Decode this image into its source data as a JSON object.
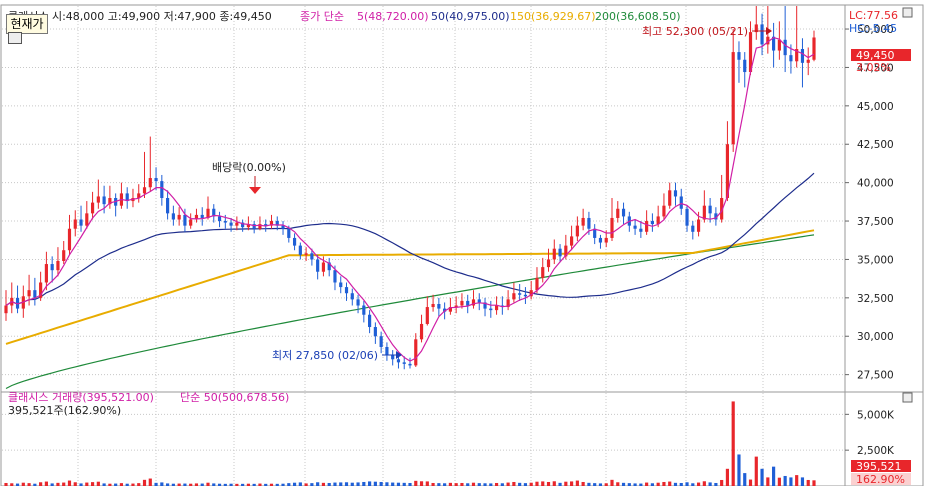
{
  "price_panel": {
    "header": {
      "stock_ohlc": "클래시스 시:48,000 고:49,900 저:47,900 종:49,450",
      "ma_label": "종가 단순",
      "ma5": "5(48,720.00)",
      "ma50": "50(40,975.00)",
      "ma150": "150(36,929.67)",
      "ma200": "200(36,608.50)"
    },
    "corner": {
      "lc": "LC:77.56",
      "hc": "HC:-5.45"
    },
    "current_button": "현재가",
    "last_price_tag": "49,450",
    "change_tag": "3.02%",
    "annotations": {
      "high": "최고 52,300 (05/21)",
      "low": "최저 27,850 (02/06)",
      "dividend": "배당락(0.00%)"
    },
    "y_ticks": [
      "50,000",
      "47,500",
      "45,000",
      "42,500",
      "40,000",
      "37,500",
      "35,000",
      "32,500",
      "30,000",
      "27,500"
    ]
  },
  "volume_panel": {
    "header": {
      "name": "클래시스 거래량(395,521.00)",
      "ma": "단순 50(500,678.56)"
    },
    "sub_label": "395,521주(162.90%)",
    "y_ticks": [
      "5,000K",
      "2,500K"
    ],
    "last_volume_tag": "395,521",
    "last_ratio_tag": "162.90%"
  },
  "colors": {
    "up": "#e8262b",
    "down": "#1f5fd6",
    "ma5": "#d01fa6",
    "ma50": "#1e2d8c",
    "ma150": "#e8ac00",
    "ma200": "#1f8a3a",
    "tag_red": "#e8262b"
  },
  "chart_data": {
    "type": "candlestick",
    "price_axis": {
      "ylim": [
        26500,
        51500
      ]
    },
    "volume_axis": {
      "ylim": [
        0,
        6000
      ]
    },
    "candles": [
      [
        31500,
        32000,
        33000,
        31000
      ],
      [
        32000,
        32500,
        33500,
        31500
      ],
      [
        32500,
        31800,
        33300,
        31500
      ],
      [
        31800,
        32600,
        33300,
        31200
      ],
      [
        32600,
        33000,
        34000,
        32000
      ],
      [
        33000,
        32500,
        33800,
        32000
      ],
      [
        32500,
        33500,
        34200,
        32300
      ],
      [
        33500,
        34700,
        35500,
        33000
      ],
      [
        34700,
        34300,
        35200,
        33500
      ],
      [
        34300,
        34900,
        35800,
        33900
      ],
      [
        34900,
        35600,
        36200,
        34700
      ],
      [
        35600,
        37000,
        37900,
        35300
      ],
      [
        37000,
        37600,
        38200,
        36500
      ],
      [
        37600,
        37200,
        38500,
        36800
      ],
      [
        37200,
        38000,
        38800,
        37000
      ],
      [
        38000,
        38700,
        39400,
        37600
      ],
      [
        38700,
        39100,
        40200,
        38300
      ],
      [
        39100,
        38600,
        39800,
        38000
      ],
      [
        38600,
        39000,
        39800,
        38300
      ],
      [
        39000,
        38500,
        39300,
        37800
      ],
      [
        38500,
        39300,
        40000,
        38300
      ],
      [
        39300,
        38800,
        39700,
        38300
      ],
      [
        38800,
        39000,
        39600,
        38400
      ],
      [
        39000,
        39300,
        39900,
        38700
      ],
      [
        39300,
        39700,
        42000,
        39000
      ],
      [
        39700,
        40300,
        43000,
        39400
      ],
      [
        40300,
        40100,
        41000,
        39500
      ],
      [
        40100,
        39000,
        40500,
        38500
      ],
      [
        39000,
        38000,
        39500,
        37600
      ],
      [
        38000,
        37600,
        38500,
        37200
      ],
      [
        37600,
        37900,
        38400,
        37200
      ],
      [
        37900,
        37200,
        38300,
        36800
      ],
      [
        37200,
        37600,
        38000,
        37000
      ],
      [
        37600,
        37900,
        38300,
        37400
      ],
      [
        37900,
        37700,
        38400,
        37200
      ],
      [
        37700,
        38300,
        39100,
        37600
      ],
      [
        38300,
        37800,
        38600,
        37400
      ],
      [
        37800,
        37500,
        38100,
        37100
      ],
      [
        37500,
        37400,
        37900,
        37000
      ],
      [
        37400,
        37200,
        37700,
        36800
      ],
      [
        37200,
        37400,
        37800,
        36900
      ],
      [
        37400,
        37100,
        37600,
        36800
      ],
      [
        37100,
        37300,
        37800,
        36900
      ],
      [
        37300,
        37000,
        37500,
        36700
      ],
      [
        37000,
        37300,
        37800,
        36900
      ],
      [
        37300,
        37200,
        37600,
        36800
      ],
      [
        37200,
        37500,
        37900,
        37000
      ],
      [
        37500,
        37200,
        37800,
        36900
      ],
      [
        37200,
        37000,
        37500,
        36600
      ],
      [
        37000,
        36400,
        37200,
        36100
      ],
      [
        36400,
        35900,
        36700,
        35600
      ],
      [
        35900,
        35300,
        36100,
        35000
      ],
      [
        35300,
        35400,
        35800,
        34900
      ],
      [
        35400,
        35000,
        35700,
        34600
      ],
      [
        35000,
        34200,
        35300,
        33700
      ],
      [
        34200,
        34800,
        35200,
        33900
      ],
      [
        34800,
        34300,
        35100,
        33900
      ],
      [
        34300,
        33500,
        34600,
        33000
      ],
      [
        33500,
        33200,
        33900,
        32800
      ],
      [
        33200,
        32800,
        33500,
        32300
      ],
      [
        32800,
        32400,
        33100,
        32000
      ],
      [
        32400,
        32000,
        32700,
        31500
      ],
      [
        32000,
        31400,
        32300,
        30900
      ],
      [
        31400,
        30600,
        31700,
        30200
      ],
      [
        30600,
        30000,
        30900,
        29500
      ],
      [
        30000,
        29300,
        30300,
        28900
      ],
      [
        29300,
        28800,
        29600,
        28400
      ],
      [
        28800,
        28500,
        29100,
        28100
      ],
      [
        28500,
        28300,
        28800,
        27900
      ],
      [
        28300,
        28200,
        28700,
        27850
      ],
      [
        28200,
        28100,
        28600,
        27900
      ],
      [
        28100,
        29800,
        30200,
        28000
      ],
      [
        29800,
        30800,
        31400,
        29600
      ],
      [
        30800,
        31900,
        32600,
        30700
      ],
      [
        31900,
        32100,
        32700,
        31600
      ],
      [
        32100,
        31800,
        32500,
        31300
      ],
      [
        31800,
        31600,
        32200,
        31100
      ],
      [
        31600,
        31900,
        32500,
        31400
      ],
      [
        31900,
        32000,
        32600,
        31500
      ],
      [
        32000,
        32300,
        32800,
        31800
      ],
      [
        32300,
        32000,
        32700,
        31500
      ],
      [
        32000,
        32400,
        33000,
        31800
      ],
      [
        32400,
        32200,
        32800,
        31700
      ],
      [
        32200,
        31800,
        32500,
        31300
      ],
      [
        31800,
        31700,
        32300,
        31200
      ],
      [
        31700,
        32000,
        32600,
        31400
      ],
      [
        32000,
        31900,
        32600,
        31400
      ],
      [
        31900,
        32400,
        33000,
        31700
      ],
      [
        32400,
        32800,
        33500,
        32200
      ],
      [
        32800,
        32700,
        33400,
        32300
      ],
      [
        32700,
        32600,
        33200,
        32100
      ],
      [
        32600,
        33000,
        33600,
        32400
      ],
      [
        33000,
        33800,
        34500,
        32800
      ],
      [
        33800,
        34500,
        35100,
        33500
      ],
      [
        34500,
        35000,
        35700,
        34200
      ],
      [
        35000,
        35700,
        36300,
        34700
      ],
      [
        35700,
        35200,
        36000,
        34800
      ],
      [
        35200,
        35900,
        36600,
        35000
      ],
      [
        35900,
        36500,
        37200,
        35600
      ],
      [
        36500,
        37200,
        37800,
        36200
      ],
      [
        37200,
        37700,
        38300,
        36900
      ],
      [
        37700,
        37000,
        38100,
        36600
      ],
      [
        37000,
        36400,
        37300,
        36000
      ],
      [
        36400,
        36100,
        36600,
        35700
      ],
      [
        36100,
        36400,
        36900,
        35800
      ],
      [
        36400,
        37700,
        39000,
        36200
      ],
      [
        37700,
        38300,
        38800,
        37400
      ],
      [
        38300,
        37800,
        38700,
        37300
      ],
      [
        37800,
        37200,
        38100,
        36800
      ],
      [
        37200,
        37000,
        37600,
        36600
      ],
      [
        37000,
        36800,
        37500,
        36400
      ],
      [
        36800,
        37500,
        38200,
        36600
      ],
      [
        37500,
        37300,
        38000,
        36800
      ],
      [
        37300,
        37800,
        38500,
        37100
      ],
      [
        37800,
        38500,
        39300,
        37600
      ],
      [
        38500,
        39500,
        40000,
        38300
      ],
      [
        39500,
        39100,
        40000,
        38500
      ],
      [
        39100,
        38300,
        39600,
        37900
      ],
      [
        38300,
        37200,
        38500,
        36800
      ],
      [
        37200,
        36800,
        37500,
        36300
      ],
      [
        36800,
        37600,
        38100,
        36500
      ],
      [
        37600,
        38500,
        39500,
        37400
      ],
      [
        38500,
        38000,
        39000,
        37400
      ],
      [
        38000,
        37600,
        38400,
        37200
      ],
      [
        37600,
        39000,
        40500,
        37400
      ],
      [
        39000,
        42500,
        44000,
        38800
      ],
      [
        42500,
        48500,
        50000,
        42000
      ],
      [
        48500,
        48000,
        49200,
        46500
      ],
      [
        48000,
        47200,
        48500,
        46200
      ],
      [
        47200,
        49800,
        50500,
        47000
      ],
      [
        49800,
        50300,
        52300,
        49300
      ],
      [
        50300,
        49000,
        51000,
        48300
      ],
      [
        49000,
        49500,
        52200,
        48400
      ],
      [
        49500,
        48600,
        50400,
        47500
      ],
      [
        48600,
        49300,
        50500,
        48000
      ],
      [
        49300,
        48300,
        51800,
        47200
      ],
      [
        48300,
        47900,
        49000,
        47100
      ],
      [
        47900,
        48700,
        52000,
        47500
      ],
      [
        48700,
        47800,
        49400,
        46200
      ],
      [
        47800,
        48000,
        48800,
        47000
      ],
      [
        48000,
        49450,
        49900,
        47900
      ]
    ],
    "volume": [
      210,
      190,
      170,
      230,
      200,
      160,
      260,
      310,
      180,
      220,
      240,
      380,
      260,
      180,
      240,
      270,
      300,
      180,
      160,
      170,
      200,
      160,
      170,
      200,
      430,
      520,
      220,
      250,
      180,
      160,
      170,
      170,
      160,
      180,
      170,
      230,
      180,
      160,
      150,
      160,
      150,
      150,
      160,
      150,
      170,
      150,
      160,
      150,
      160,
      200,
      230,
      250,
      180,
      200,
      260,
      220,
      210,
      240,
      250,
      260,
      230,
      250,
      280,
      320,
      300,
      280,
      260,
      240,
      230,
      220,
      210,
      360,
      330,
      320,
      210,
      200,
      190,
      220,
      200,
      210,
      190,
      230,
      200,
      190,
      180,
      210,
      190,
      240,
      280,
      220,
      200,
      230,
      300,
      320,
      280,
      330,
      220,
      300,
      320,
      380,
      280,
      220,
      200,
      180,
      190,
      430,
      260,
      220,
      200,
      180,
      170,
      240,
      190,
      230,
      280,
      310,
      220,
      210,
      260,
      190,
      240,
      330,
      250,
      210,
      420,
      1200,
      5900,
      2200,
      900,
      450,
      2050,
      1200,
      600,
      1350,
      580,
      700,
      600,
      760,
      600,
      420,
      396
    ]
  }
}
